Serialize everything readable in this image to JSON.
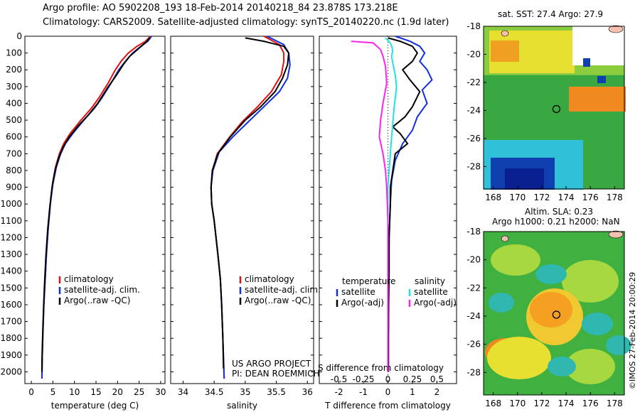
{
  "header": {
    "line1": "Argo profile: AO 5902208_193 18-Feb-2014 20140218_84 23.878S 173.218E",
    "line2": "Climatology: CARS2009. Satellite-adjusted climatology: synTS_20140220.nc (1.9d later)"
  },
  "colors": {
    "climatology": "#e01010",
    "satellite": "#1030e0",
    "argo": "#000000",
    "argo_salinity_diff": "#ff22ee",
    "satellite_salinity_diff": "#20e0e8"
  },
  "depth_ticks": [
    "0",
    "100",
    "200",
    "300",
    "400",
    "500",
    "600",
    "700",
    "800",
    "900",
    "1000",
    "1100",
    "1200",
    "1300",
    "1400",
    "1500",
    "1600",
    "1700",
    "1800",
    "1900",
    "2000"
  ],
  "chart_data": [
    {
      "type": "line",
      "id": "temperature",
      "xlabel": "temperature (deg C)",
      "xlim": [
        -1.5,
        31
      ],
      "xticks": [
        "0",
        "5",
        "10",
        "15",
        "20",
        "25",
        "30"
      ],
      "ylim": [
        2070,
        0
      ],
      "legend": [
        "climatology",
        "satellite-adj. clim.",
        "Argo(..raw -QC)"
      ],
      "series": [
        {
          "name": "climatology",
          "color": "climatology",
          "points": [
            [
              27.6,
              0
            ],
            [
              26.5,
              30
            ],
            [
              24.5,
              60
            ],
            [
              22.5,
              100
            ],
            [
              20.8,
              150
            ],
            [
              19.5,
              200
            ],
            [
              17.8,
              280
            ],
            [
              15.6,
              370
            ],
            [
              13.9,
              430
            ],
            [
              11.5,
              500
            ],
            [
              9.0,
              580
            ],
            [
              7.5,
              640
            ],
            [
              6.5,
              700
            ],
            [
              5.6,
              780
            ],
            [
              4.9,
              880
            ],
            [
              4.4,
              1000
            ],
            [
              3.9,
              1150
            ],
            [
              3.5,
              1300
            ],
            [
              3.2,
              1450
            ],
            [
              2.9,
              1600
            ],
            [
              2.7,
              1750
            ],
            [
              2.55,
              1900
            ],
            [
              2.45,
              2040
            ]
          ]
        },
        {
          "name": "satellite-adj. clim.",
          "color": "satellite",
          "points": [
            [
              27.9,
              0
            ],
            [
              27.0,
              30
            ],
            [
              25.4,
              60
            ],
            [
              23.5,
              100
            ],
            [
              21.8,
              150
            ],
            [
              20.3,
              200
            ],
            [
              18.5,
              280
            ],
            [
              16.3,
              370
            ],
            [
              14.6,
              430
            ],
            [
              12.2,
              500
            ],
            [
              9.6,
              580
            ],
            [
              7.9,
              640
            ],
            [
              6.8,
              700
            ],
            [
              5.8,
              780
            ],
            [
              5.0,
              880
            ],
            [
              4.4,
              1000
            ],
            [
              3.9,
              1150
            ],
            [
              3.5,
              1300
            ],
            [
              3.2,
              1450
            ],
            [
              2.9,
              1600
            ],
            [
              2.7,
              1750
            ],
            [
              2.55,
              1900
            ],
            [
              2.45,
              2040
            ]
          ]
        },
        {
          "name": "Argo(..raw -QC)",
          "color": "argo",
          "points": [
            [
              27.5,
              10
            ],
            [
              26.4,
              40
            ],
            [
              24.6,
              80
            ],
            [
              22.8,
              120
            ],
            [
              21.3,
              170
            ],
            [
              19.8,
              230
            ],
            [
              17.6,
              310
            ],
            [
              15.4,
              400
            ],
            [
              13.2,
              470
            ],
            [
              11.0,
              530
            ],
            [
              8.8,
              600
            ],
            [
              7.4,
              660
            ],
            [
              6.4,
              720
            ],
            [
              5.5,
              800
            ],
            [
              4.8,
              900
            ],
            [
              4.3,
              1010
            ],
            [
              3.8,
              1150
            ],
            [
              3.4,
              1300
            ],
            [
              3.1,
              1450
            ],
            [
              2.85,
              1600
            ],
            [
              2.65,
              1750
            ],
            [
              2.5,
              1900
            ],
            [
              2.45,
              2000
            ]
          ]
        }
      ]
    },
    {
      "type": "line",
      "id": "salinity",
      "xlabel": "salinity",
      "xlim": [
        33.8,
        36.1
      ],
      "xticks": [
        "34",
        "34.5",
        "35",
        "35.5",
        "36"
      ],
      "ylim": [
        2070,
        0
      ],
      "legend": [
        "climatology",
        "satellite-adj. clim.",
        "Argo(..raw -QC)"
      ],
      "annotation": [
        "US ARGO PROJECT",
        "PI: DEAN ROEMMICH"
      ],
      "series": [
        {
          "name": "climatology",
          "color": "climatology",
          "points": [
            [
              35.3,
              0
            ],
            [
              35.55,
              50
            ],
            [
              35.62,
              100
            ],
            [
              35.62,
              150
            ],
            [
              35.58,
              230
            ],
            [
              35.42,
              330
            ],
            [
              35.2,
              420
            ],
            [
              34.95,
              510
            ],
            [
              34.75,
              600
            ],
            [
              34.55,
              700
            ],
            [
              34.47,
              800
            ],
            [
              34.45,
              900
            ],
            [
              34.46,
              1000
            ],
            [
              34.5,
              1100
            ],
            [
              34.53,
              1200
            ],
            [
              34.56,
              1300
            ],
            [
              34.6,
              1450
            ],
            [
              34.62,
              1600
            ],
            [
              34.64,
              1800
            ],
            [
              34.66,
              2040
            ]
          ]
        },
        {
          "name": "satellite-adj. clim.",
          "color": "satellite",
          "points": [
            [
              35.35,
              0
            ],
            [
              35.62,
              50
            ],
            [
              35.7,
              100
            ],
            [
              35.72,
              170
            ],
            [
              35.68,
              250
            ],
            [
              35.55,
              330
            ],
            [
              35.3,
              420
            ],
            [
              35.05,
              510
            ],
            [
              34.8,
              600
            ],
            [
              34.58,
              690
            ],
            [
              34.48,
              800
            ],
            [
              34.45,
              900
            ],
            [
              34.46,
              1000
            ],
            [
              34.5,
              1100
            ],
            [
              34.53,
              1200
            ],
            [
              34.56,
              1300
            ],
            [
              34.6,
              1450
            ],
            [
              34.62,
              1600
            ],
            [
              34.64,
              1800
            ],
            [
              34.66,
              2040
            ]
          ]
        },
        {
          "name": "Argo(..raw -QC)",
          "color": "argo",
          "points": [
            [
              35.0,
              10
            ],
            [
              35.3,
              30
            ],
            [
              35.62,
              60
            ],
            [
              35.7,
              100
            ],
            [
              35.68,
              170
            ],
            [
              35.6,
              250
            ],
            [
              35.48,
              330
            ],
            [
              35.25,
              420
            ],
            [
              35.0,
              500
            ],
            [
              34.76,
              600
            ],
            [
              34.56,
              700
            ],
            [
              34.47,
              800
            ],
            [
              34.45,
              900
            ],
            [
              34.46,
              1000
            ],
            [
              34.5,
              1100
            ],
            [
              34.53,
              1200
            ],
            [
              34.56,
              1300
            ],
            [
              34.6,
              1450
            ],
            [
              34.62,
              1600
            ],
            [
              34.64,
              1800
            ],
            [
              34.65,
              1980
            ]
          ]
        }
      ]
    },
    {
      "type": "line",
      "id": "difference",
      "xlabel": "T difference from climatology",
      "xlabel_top": "S difference from climatology",
      "xlim": [
        -2.8,
        2.8
      ],
      "xticks": [
        "-2",
        "-1",
        "0",
        "1",
        "2"
      ],
      "xticks_top": [
        "-0.5",
        "-0.25",
        "0",
        "0.25",
        "0.5"
      ],
      "ylim": [
        2070,
        0
      ],
      "legend_left_title": "temperature",
      "legend_left": [
        "satellite",
        "Argo(-adj)"
      ],
      "legend_right_title": "salinity",
      "legend_right": [
        "satellite",
        "Argo(-adj)"
      ],
      "series": [
        {
          "name": "temperature satellite",
          "color": "satellite",
          "points": [
            [
              0.3,
              0
            ],
            [
              0.9,
              30
            ],
            [
              1.3,
              60
            ],
            [
              1.5,
              100
            ],
            [
              1.3,
              150
            ],
            [
              1.6,
              200
            ],
            [
              1.8,
              260
            ],
            [
              1.4,
              320
            ],
            [
              1.6,
              400
            ],
            [
              1.2,
              480
            ],
            [
              1.0,
              560
            ],
            [
              0.6,
              640
            ],
            [
              0.3,
              740
            ],
            [
              0.15,
              860
            ],
            [
              0.1,
              1000
            ],
            [
              0.05,
              1200
            ],
            [
              0.03,
              1500
            ],
            [
              0.02,
              1800
            ],
            [
              0.02,
              2000
            ]
          ]
        },
        {
          "name": "temperature Argo(-adj)",
          "color": "argo",
          "points": [
            [
              0.0,
              10
            ],
            [
              0.5,
              30
            ],
            [
              1.0,
              60
            ],
            [
              1.2,
              100
            ],
            [
              1.0,
              150
            ],
            [
              0.6,
              200
            ],
            [
              0.9,
              260
            ],
            [
              1.3,
              330
            ],
            [
              1.0,
              420
            ],
            [
              0.7,
              480
            ],
            [
              0.2,
              540
            ],
            [
              0.5,
              580
            ],
            [
              0.8,
              640
            ],
            [
              0.3,
              700
            ],
            [
              0.2,
              800
            ],
            [
              0.1,
              900
            ],
            [
              0.1,
              1000
            ],
            [
              0.05,
              1200
            ],
            [
              0.05,
              1400
            ],
            [
              0.03,
              1600
            ],
            [
              0.02,
              1800
            ],
            [
              0.02,
              2000
            ]
          ]
        },
        {
          "name": "salinity satellite",
          "color": "satellite_salinity_diff",
          "points": [
            [
              -0.1,
              10
            ],
            [
              0.1,
              40
            ],
            [
              0.2,
              80
            ],
            [
              0.15,
              120
            ],
            [
              0.2,
              160
            ],
            [
              0.3,
              230
            ],
            [
              0.35,
              300
            ],
            [
              0.3,
              370
            ],
            [
              0.25,
              430
            ],
            [
              0.2,
              520
            ],
            [
              0.15,
              600
            ],
            [
              0.1,
              700
            ],
            [
              0.05,
              800
            ],
            [
              0.0,
              900
            ],
            [
              0.0,
              1100
            ],
            [
              0.0,
              1400
            ],
            [
              0.0,
              1700
            ],
            [
              0.0,
              2000
            ]
          ]
        },
        {
          "name": "salinity Argo(-adj)",
          "color": "argo_salinity_diff",
          "points": [
            [
              -1.5,
              30
            ],
            [
              -0.6,
              40
            ],
            [
              -0.3,
              80
            ],
            [
              -0.2,
              120
            ],
            [
              -0.1,
              180
            ],
            [
              -0.05,
              280
            ],
            [
              -0.2,
              400
            ],
            [
              -0.3,
              500
            ],
            [
              -0.35,
              600
            ],
            [
              -0.2,
              700
            ],
            [
              -0.1,
              800
            ],
            [
              -0.05,
              900
            ],
            [
              0.0,
              1100
            ],
            [
              0.0,
              1400
            ],
            [
              0.0,
              1700
            ],
            [
              0.0,
              2000
            ]
          ]
        }
      ]
    }
  ],
  "maps": {
    "sst": {
      "title": "sat. SST: 27.4  Argo: 27.9",
      "xticks": [
        "168",
        "170",
        "172",
        "174",
        "176",
        "178"
      ],
      "yticks": [
        "-18",
        "-20",
        "-22",
        "-24",
        "-26",
        "-28"
      ],
      "marker": [
        173.2,
        -23.9
      ],
      "colors": {
        "hot": "#f08a20",
        "yellow": "#e8e030",
        "green": "#3aa840",
        "cyan": "#30c0d8",
        "blue": "#1040b0",
        "deep": "#0a2090",
        "land": "#f4c0b0"
      }
    },
    "sla": {
      "title1": "Altim. SLA: 0.23",
      "title2": "Argo h1000: 0.21  h2000: NaN",
      "xticks": [
        "168",
        "170",
        "172",
        "174",
        "176",
        "178"
      ],
      "yticks": [
        "-18",
        "-20",
        "-22",
        "-24",
        "-26",
        "-28"
      ],
      "marker": [
        173.2,
        -23.9
      ],
      "watermark": "©IMOS 27-Feb-2014 20:00:29"
    }
  }
}
